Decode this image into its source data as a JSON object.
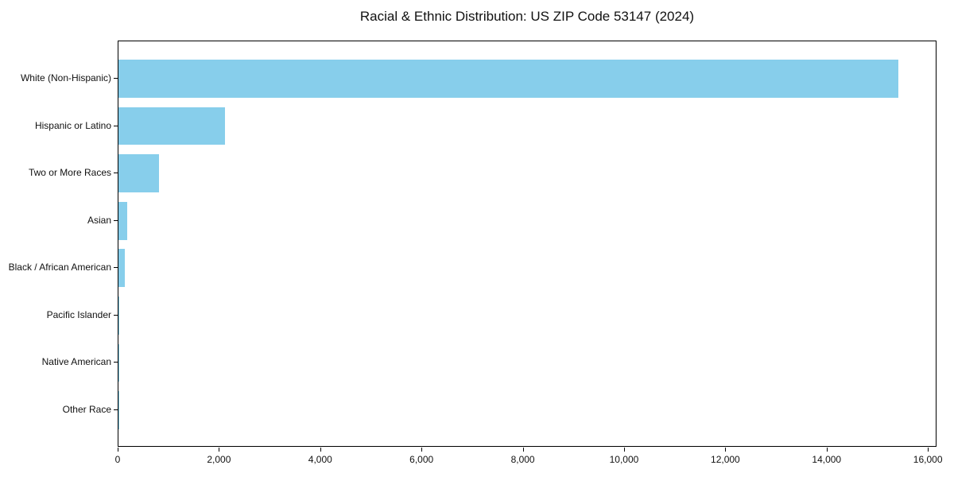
{
  "chart_data": {
    "type": "bar",
    "orientation": "horizontal",
    "title": "Racial & Ethnic Distribution: US ZIP Code 53147 (2024)",
    "categories": [
      "White (Non-Hispanic)",
      "Hispanic or Latino",
      "Two or More Races",
      "Asian",
      "Black / African American",
      "Pacific Islander",
      "Native American",
      "Other Race"
    ],
    "values": [
      15400,
      2110,
      800,
      175,
      130,
      15,
      5,
      2
    ],
    "xlabel": "",
    "ylabel": "",
    "xlim": [
      0,
      16170
    ],
    "xticks": [
      0,
      2000,
      4000,
      6000,
      8000,
      10000,
      12000,
      14000,
      16000
    ],
    "xtick_labels": [
      "0",
      "2,000",
      "4,000",
      "6,000",
      "8,000",
      "10,000",
      "12,000",
      "14,000",
      "16,000"
    ],
    "bar_color": "#87CEEB",
    "axis_color": "#000000",
    "grid": false,
    "legend_position": "none"
  }
}
